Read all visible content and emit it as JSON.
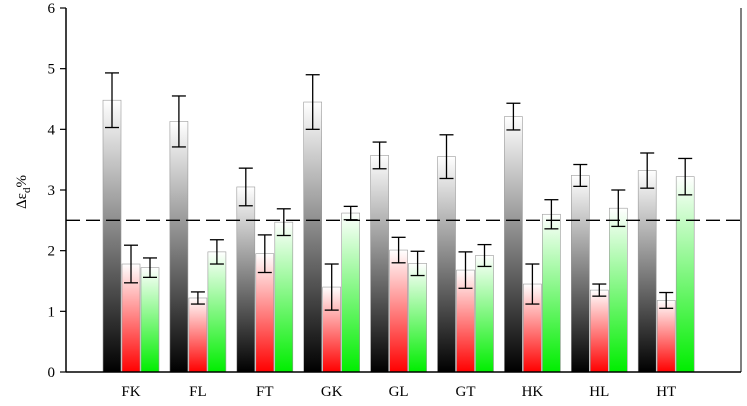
{
  "chart_data": {
    "type": "bar",
    "title": "",
    "xlabel": "",
    "ylabel": {
      "prefix": "Δε",
      "subscript": "d",
      "suffix": "%"
    },
    "ylim": [
      0,
      6
    ],
    "yticks": [
      "0",
      "1",
      "2",
      "3",
      "4",
      "5",
      "6"
    ],
    "categories": [
      "FK",
      "FL",
      "FT",
      "GK",
      "GL",
      "GT",
      "HK",
      "HL",
      "HT"
    ],
    "reference_line": 2.5,
    "grid": false,
    "legend": "none",
    "series": [
      {
        "color": "#000000",
        "values": [
          4.48,
          4.13,
          3.05,
          4.45,
          3.57,
          3.55,
          4.21,
          3.24,
          3.32
        ],
        "errors": [
          0.45,
          0.42,
          0.31,
          0.45,
          0.22,
          0.36,
          0.22,
          0.18,
          0.29
        ]
      },
      {
        "color": "#ff0000",
        "values": [
          1.78,
          1.22,
          1.95,
          1.4,
          2.01,
          1.68,
          1.45,
          1.35,
          1.18
        ],
        "errors": [
          0.31,
          0.1,
          0.31,
          0.38,
          0.21,
          0.3,
          0.33,
          0.1,
          0.13
        ]
      },
      {
        "color": "#00ee00",
        "values": [
          1.72,
          1.98,
          2.47,
          2.62,
          1.79,
          1.92,
          2.6,
          2.7,
          3.22
        ],
        "errors": [
          0.16,
          0.2,
          0.22,
          0.11,
          0.2,
          0.18,
          0.24,
          0.3,
          0.3
        ]
      }
    ]
  }
}
